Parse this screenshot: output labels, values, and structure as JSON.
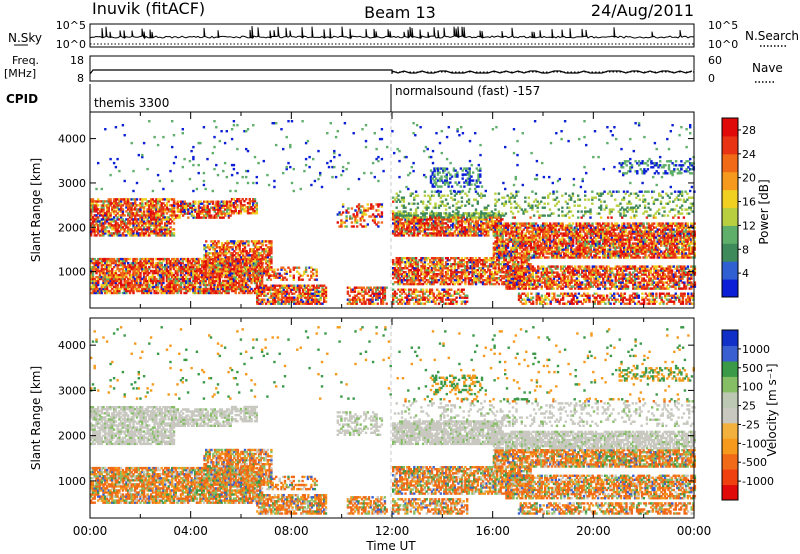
{
  "header": {
    "station": "Inuvik (fitACF)",
    "beam": "Beam 13",
    "date": "24/Aug/2011"
  },
  "panels": {
    "nsky_label": "N.Sky",
    "nsky_ticks": [
      "10^5",
      "10^0"
    ],
    "nsearch_label": "N.Search",
    "nsearch_ticks": [
      "10^5",
      "10^0"
    ],
    "freq_label": "Freq.",
    "freq_unit": "[MHz]",
    "freq_ticks": [
      "18",
      "8"
    ],
    "nave_label": "Nave",
    "nave_ticks": [
      "60",
      "0"
    ],
    "cpid_label": "CPID",
    "cpid_before": "themis 3300",
    "cpid_after": "normalsound (fast) -157"
  },
  "colors": {
    "power": [
      "#0a1fd6",
      "#2f5fd0",
      "#3f8a5a",
      "#5fae6a",
      "#b8d040",
      "#f0d020",
      "#f59a1c",
      "#f06a18",
      "#e83414",
      "#e00a0a"
    ],
    "velocity": [
      "#e00a0a",
      "#f04010",
      "#f06a18",
      "#f59a1c",
      "#f2b03c",
      "#c8c8c0",
      "#bcc8b4",
      "#86be66",
      "#3a9a48",
      "#3a5fd0",
      "#1030c8"
    ],
    "grey": "#c8c8c0"
  },
  "chart_data": [
    {
      "type": "heatmap",
      "title": "Power",
      "xlabel": "Time UT",
      "ylabel": "Slant Range [km]",
      "x_ticks": [
        "00:00",
        "04:00",
        "08:00",
        "12:00",
        "16:00",
        "20:00",
        "00:00"
      ],
      "xlim_hours": [
        0,
        24
      ],
      "y_ticks": [
        "1000",
        "2000",
        "3000",
        "4000"
      ],
      "ylim_km": [
        180,
        4600
      ],
      "colorbar_label": "Power [dB]",
      "colorbar_ticks": [
        "4",
        "8",
        "12",
        "16",
        "20",
        "24",
        "28"
      ],
      "colorbar_range": [
        0,
        30
      ]
    },
    {
      "type": "heatmap",
      "title": "Velocity",
      "xlabel": "Time UT",
      "ylabel": "Slant Range [km]",
      "x_ticks": [
        "00:00",
        "04:00",
        "08:00",
        "12:00",
        "16:00",
        "20:00",
        "00:00"
      ],
      "xlim_hours": [
        0,
        24
      ],
      "y_ticks": [
        "1000",
        "2000",
        "3000",
        "4000"
      ],
      "ylim_km": [
        180,
        4600
      ],
      "colorbar_label": "Velocity [m s⁻¹]",
      "colorbar_ticks": [
        "1000",
        "500",
        "100",
        "25",
        "-25",
        "-100",
        "-500",
        "-1000"
      ]
    }
  ]
}
